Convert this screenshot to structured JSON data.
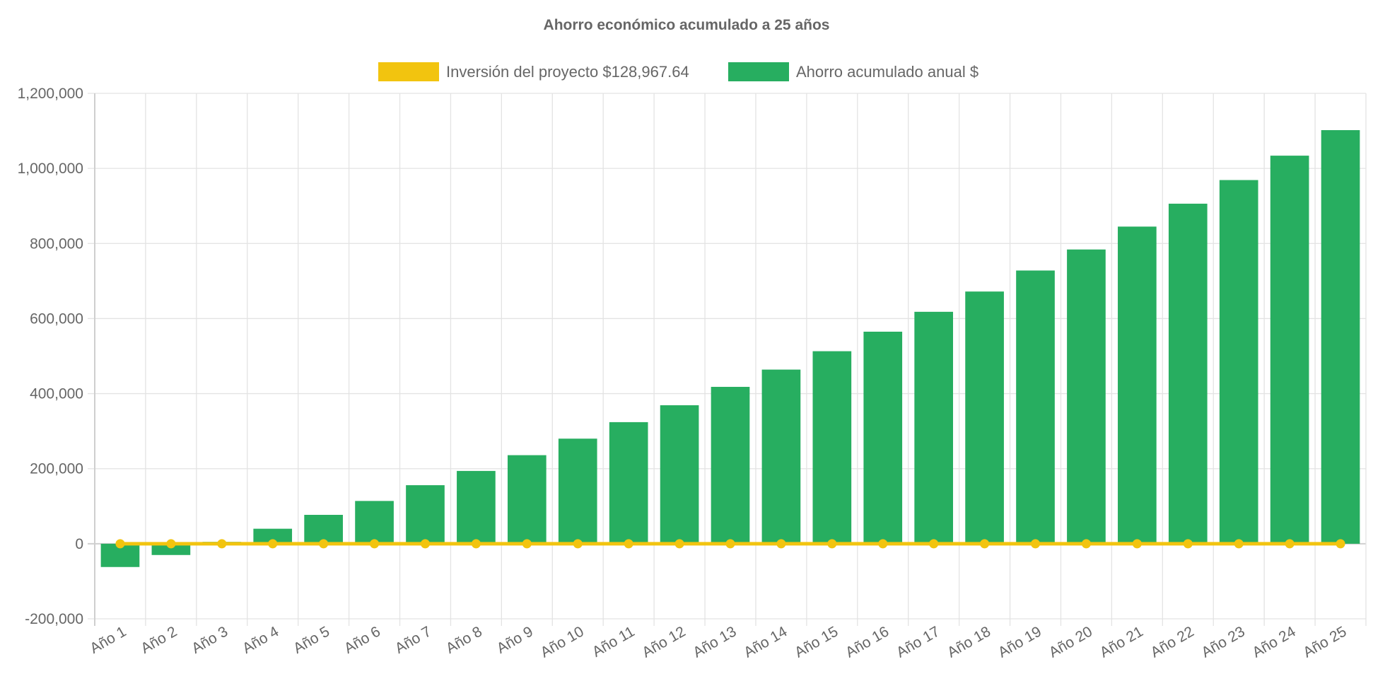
{
  "chart_data": {
    "type": "bar",
    "title": "Ahorro económico acumulado a 25 años",
    "categories": [
      "Año 1",
      "Año 2",
      "Año 3",
      "Año 4",
      "Año 5",
      "Año 6",
      "Año 7",
      "Año 8",
      "Año 9",
      "Año 10",
      "Año 11",
      "Año 12",
      "Año 13",
      "Año 14",
      "Año 15",
      "Año 16",
      "Año 17",
      "Año 18",
      "Año 19",
      "Año 20",
      "Año 21",
      "Año 22",
      "Año 23",
      "Año 24",
      "Año 25"
    ],
    "series": [
      {
        "name": "Inversión del proyecto $128,967.64",
        "type": "line",
        "color": "#f2c40f",
        "values": [
          0,
          0,
          0,
          0,
          0,
          0,
          0,
          0,
          0,
          0,
          0,
          0,
          0,
          0,
          0,
          0,
          0,
          0,
          0,
          0,
          0,
          0,
          0,
          0,
          0
        ]
      },
      {
        "name": "Ahorro acumulado anual $",
        "type": "bar",
        "color": "#27ae60",
        "values": [
          -62000,
          -30000,
          5000,
          40000,
          77000,
          114000,
          156000,
          194000,
          236000,
          280000,
          324000,
          369000,
          418000,
          464000,
          513000,
          565000,
          618000,
          672000,
          728000,
          784000,
          845000,
          906000,
          969000,
          1034000,
          1102000
        ]
      }
    ],
    "ylim": [
      -200000,
      1200000
    ],
    "yticks": [
      -200000,
      0,
      200000,
      400000,
      600000,
      800000,
      1000000,
      1200000
    ],
    "ytick_labels": [
      "-200,000",
      "0",
      "200,000",
      "400,000",
      "600,000",
      "800,000",
      "1,000,000",
      "1,200,000"
    ],
    "grid": true,
    "legend_position": "top"
  }
}
